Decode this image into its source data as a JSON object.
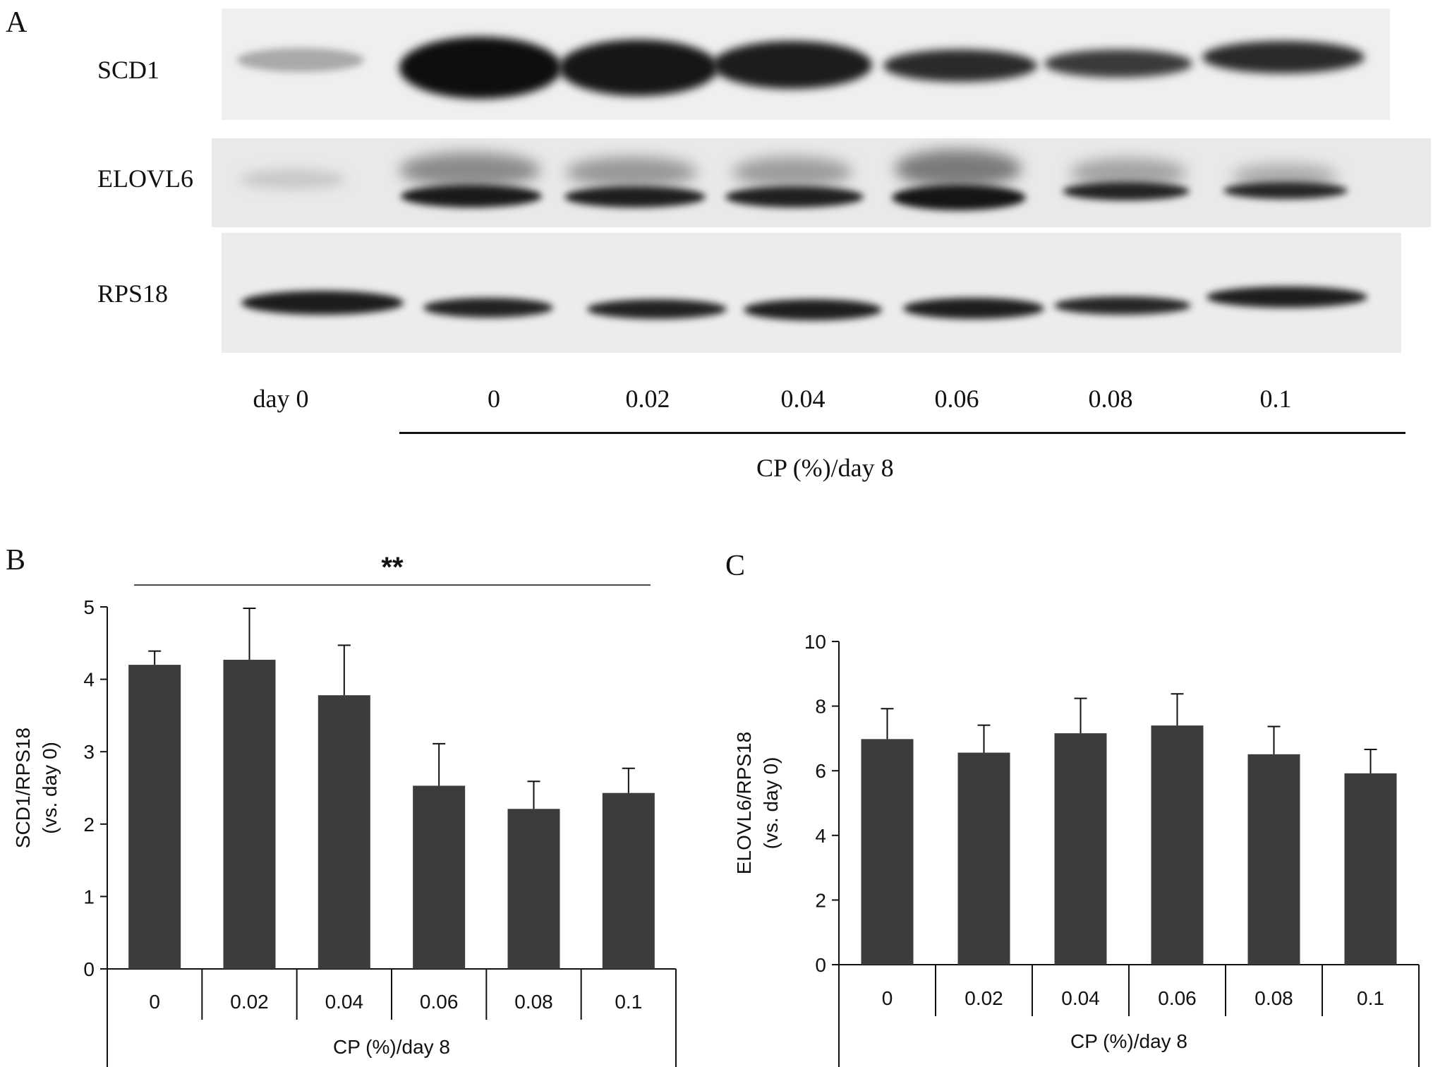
{
  "panel_a": {
    "letter": "A",
    "rows": [
      {
        "label": "SCD1"
      },
      {
        "label": "ELOVL6"
      },
      {
        "label": "RPS18"
      }
    ],
    "lanes": [
      "day 0",
      "0",
      "0.02",
      "0.04",
      "0.06",
      "0.08",
      "0.1"
    ],
    "group_label": "CP (%)/day 8"
  },
  "chart_data": [
    {
      "panel": "B",
      "type": "bar",
      "categories": [
        "0",
        "0.02",
        "0.04",
        "0.06",
        "0.08",
        "0.1"
      ],
      "values": [
        4.2,
        4.27,
        3.78,
        2.53,
        2.21,
        2.43
      ],
      "errors": [
        0.19,
        0.71,
        0.69,
        0.58,
        0.38,
        0.34
      ],
      "ylabel_line1": "SCD1/RPS18",
      "ylabel_line2": "(vs. day 0)",
      "xlabel": "CP (%)/day 8",
      "ylim": [
        0,
        5
      ],
      "yticks": [
        0,
        1,
        2,
        3,
        4,
        5
      ],
      "significance": "**",
      "bar_color": "#3c3c3c",
      "grid": false
    },
    {
      "panel": "C",
      "type": "bar",
      "categories": [
        "0",
        "0.02",
        "0.04",
        "0.06",
        "0.08",
        "0.1"
      ],
      "values": [
        6.98,
        6.56,
        7.16,
        7.4,
        6.51,
        5.92
      ],
      "errors": [
        0.94,
        0.85,
        1.08,
        0.98,
        0.86,
        0.74
      ],
      "ylabel_line1": "ELOVL6/RPS18",
      "ylabel_line2": "(vs. day 0)",
      "xlabel": "CP (%)/day 8",
      "ylim": [
        0,
        10
      ],
      "yticks": [
        0,
        2,
        4,
        6,
        8,
        10
      ],
      "bar_color": "#3c3c3c",
      "grid": false
    }
  ]
}
